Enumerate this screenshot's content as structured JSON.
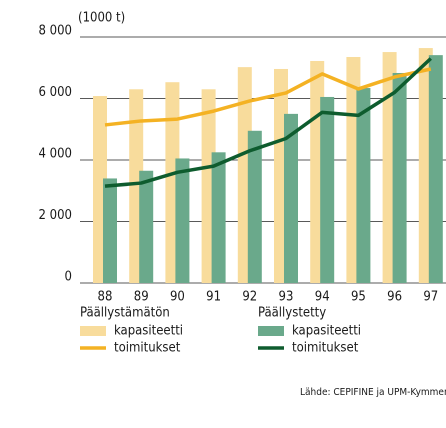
{
  "chart_data": {
    "type": "bar",
    "unit_label": "(1000 t)",
    "categories": [
      "88",
      "89",
      "90",
      "91",
      "92",
      "93",
      "94",
      "95",
      "96",
      "97"
    ],
    "ylim": [
      0,
      8000
    ],
    "yticks": [
      {
        "value": 0,
        "label": "0"
      },
      {
        "value": 2000,
        "label": "2 000"
      },
      {
        "value": 4000,
        "label": "4 000"
      },
      {
        "value": 6000,
        "label": "6 000"
      },
      {
        "value": 8000,
        "label": "8 000"
      }
    ],
    "grid": true,
    "groups": [
      {
        "title": "Päällystämätön",
        "series": [
          {
            "name": "kapasiteetti",
            "type": "bar",
            "color": "#f8dc9c",
            "values": [
              6080,
              6300,
              6530,
              6300,
              7020,
              6960,
              7220,
              7350,
              7510,
              7640
            ]
          },
          {
            "name": "toimitukset",
            "type": "line",
            "color": "#f4b223",
            "values": [
              5140,
              5270,
              5330,
              5590,
              5920,
              6180,
              6800,
              6310,
              6700,
              6960
            ]
          }
        ]
      },
      {
        "title": "Päällystetty",
        "series": [
          {
            "name": "kapasiteetti",
            "type": "bar",
            "color": "#6aa98b",
            "values": [
              3400,
              3650,
              4050,
              4250,
              4950,
              5500,
              6050,
              6340,
              6830,
              7410
            ]
          },
          {
            "name": "toimitukset",
            "type": "line",
            "color": "#0e5c2e",
            "values": [
              3150,
              3250,
              3600,
              3800,
              4300,
              4700,
              5550,
              5450,
              6200,
              7300
            ]
          }
        ]
      }
    ],
    "source": "Lähde: CEPIFINE ja UPM-Kymmene"
  }
}
